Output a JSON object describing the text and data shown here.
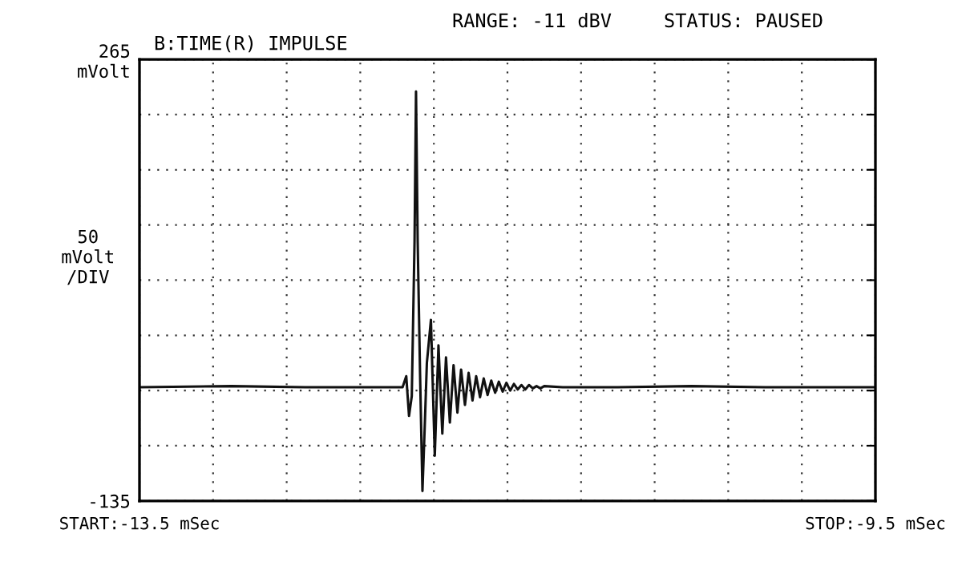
{
  "chart_data": {
    "type": "line",
    "title": "B:TIME(R) IMPULSE",
    "ylabel": "50\nmVolt\n/DIV",
    "annotations": [
      "RANGE: -11 dBV",
      "STATUS: PAUSED"
    ],
    "xlim": [
      -13.5,
      -9.5
    ],
    "xticks": [
      {
        "value": -13.5,
        "label": "START:-13.5 mSec"
      },
      {
        "value": -13.1,
        "label": null
      },
      {
        "value": -12.7,
        "label": null
      },
      {
        "value": -12.3,
        "label": null
      },
      {
        "value": -11.9,
        "label": null
      },
      {
        "value": -11.5,
        "label": null
      },
      {
        "value": -11.1,
        "label": null
      },
      {
        "value": -10.7,
        "label": null
      },
      {
        "value": -10.3,
        "label": null
      },
      {
        "value": -9.9,
        "label": null
      },
      {
        "value": -9.5,
        "label": "STOP:-9.5 mSec"
      }
    ],
    "ylim": [
      -135,
      265
    ],
    "yticks": [
      {
        "value": 265,
        "label": "265\nmVolt"
      },
      {
        "value": 215,
        "label": null
      },
      {
        "value": 165,
        "label": null
      },
      {
        "value": 115,
        "label": null
      },
      {
        "value": 65,
        "label": null
      },
      {
        "value": 15,
        "label": null
      },
      {
        "value": -35,
        "label": null
      },
      {
        "value": -85,
        "label": null
      },
      -135
    ],
    "grid": true,
    "line_style": "solid",
    "marker": "none",
    "series": [
      {
        "color": "#111111",
        "x": [
          -13.5,
          -13.0,
          -12.6,
          -12.2,
          -12.07,
          -12.05,
          -12.035,
          -12.02,
          -12.005,
          -11.997,
          -11.988,
          -11.975,
          -11.962,
          -11.948,
          -11.938,
          -11.916,
          -11.895,
          -11.875,
          -11.854,
          -11.834,
          -11.813,
          -11.793,
          -11.772,
          -11.752,
          -11.731,
          -11.711,
          -11.69,
          -11.67,
          -11.649,
          -11.629,
          -11.608,
          -11.588,
          -11.567,
          -11.547,
          -11.526,
          -11.506,
          -11.485,
          -11.465,
          -11.444,
          -11.424,
          -11.403,
          -11.383,
          -11.362,
          -11.342,
          -11.321,
          -11.3,
          -11.2,
          -10.9,
          -10.5,
          -10.1,
          -9.5
        ],
        "values": [
          -32,
          -31,
          -32,
          -32,
          -32,
          -22,
          -58,
          -40,
          100,
          236,
          100,
          -20,
          -126,
          -60,
          -10,
          29,
          -94,
          6,
          -74,
          -5,
          -64,
          -12,
          -55,
          -16,
          -48,
          -19,
          -44,
          -22,
          -41,
          -24,
          -39,
          -26,
          -37,
          -27,
          -36,
          -28,
          -35,
          -29,
          -34,
          -30,
          -34,
          -30,
          -33,
          -31,
          -33,
          -31,
          -32,
          -32,
          -31,
          -32,
          -32
        ]
      }
    ]
  }
}
